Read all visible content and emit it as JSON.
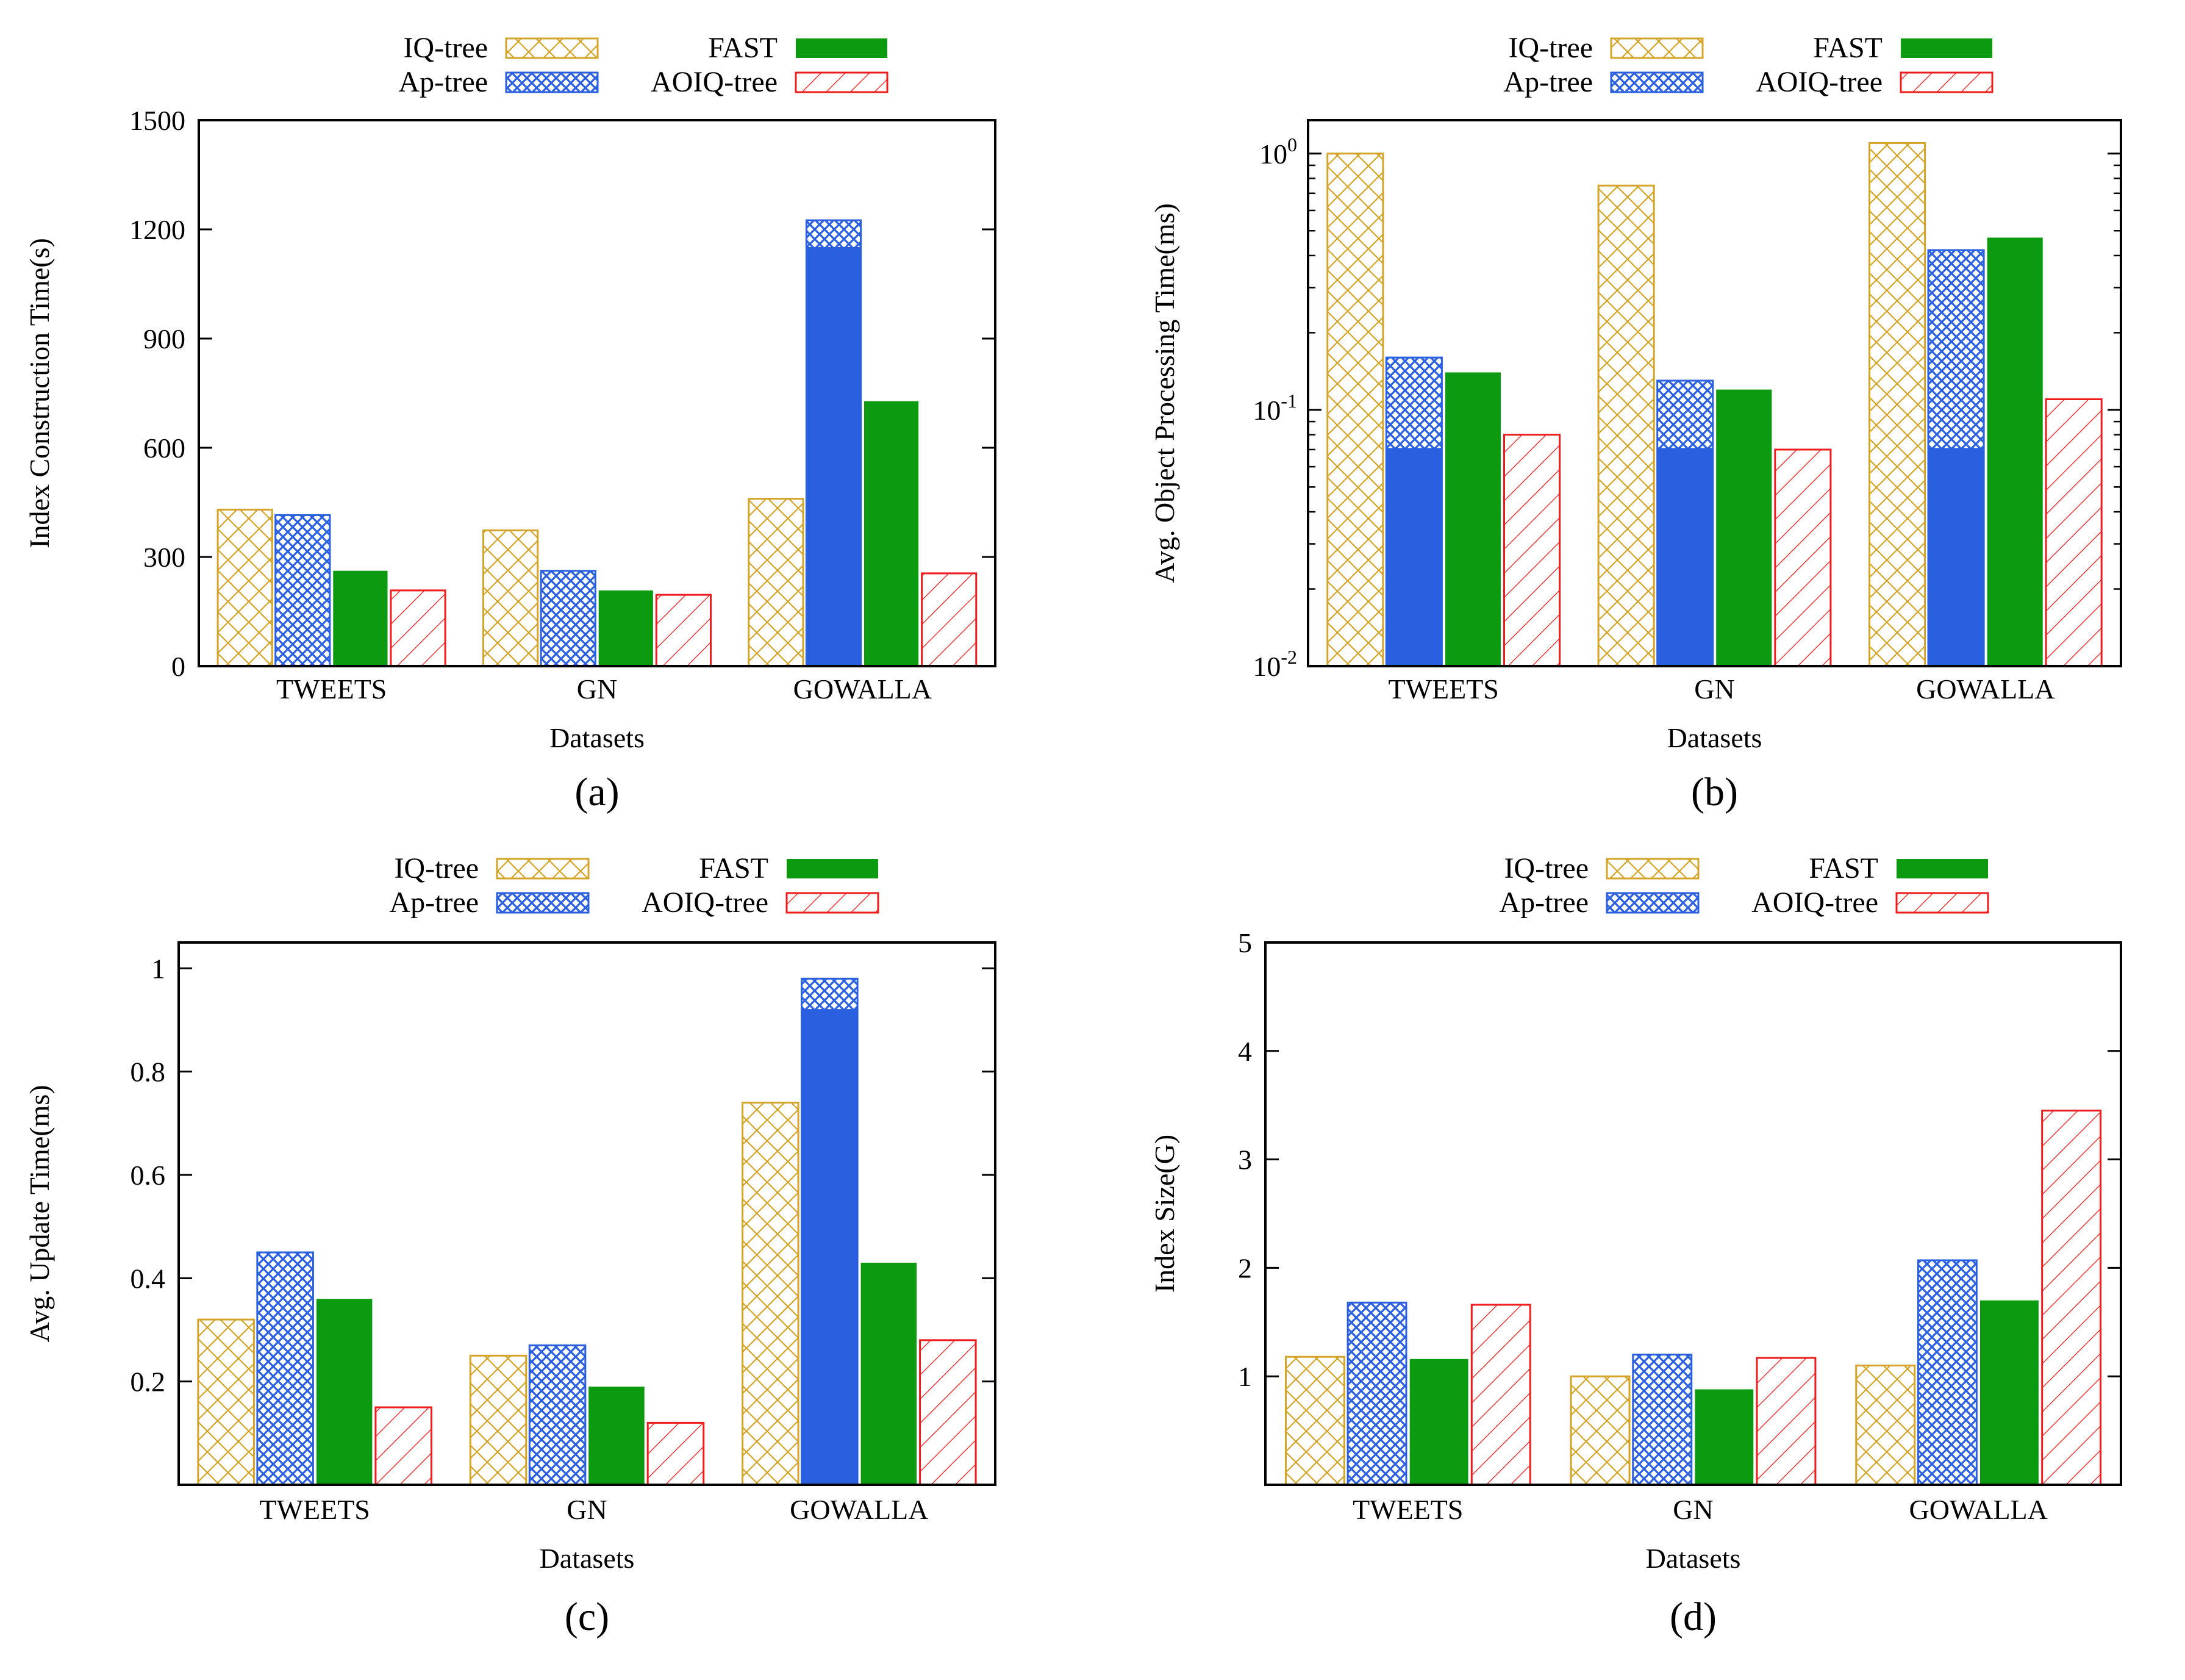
{
  "colors": {
    "iq_tree": "#d4a429",
    "ap_tree": "#2a60e0",
    "fast": "#0c9a10",
    "aoiq_tree": "#ee1c1c"
  },
  "series_styles": [
    {
      "name": "IQ-tree",
      "pattern": "crosshatch-outline",
      "color": "#d4a429"
    },
    {
      "name": "Ap-tree",
      "pattern": "fine-crosshatch",
      "color": "#2a60e0"
    },
    {
      "name": "FAST",
      "pattern": "solid",
      "color": "#0c9a10"
    },
    {
      "name": "AOIQ-tree",
      "pattern": "diagonal-hatch-outline",
      "color": "#ee1c1c"
    }
  ],
  "chart_data": [
    {
      "id": "a",
      "panel_label": "(a)",
      "type": "bar",
      "title": "",
      "xlabel": "Datasets",
      "ylabel": "Index Construction Time(s)",
      "yscale": "linear",
      "ylim": [
        0,
        1500
      ],
      "yticks": [
        0,
        300,
        600,
        900,
        1200,
        1500
      ],
      "ytick_labels": [
        "0",
        "300",
        "600",
        "900",
        "1200",
        "1500"
      ],
      "categories": [
        "TWEETS",
        "GN",
        "GOWALLA"
      ],
      "series": [
        {
          "name": "IQ-tree",
          "values": [
            430,
            373,
            460
          ]
        },
        {
          "name": "Ap-tree",
          "values": [
            415,
            262,
            1225
          ]
        },
        {
          "name": "FAST",
          "values": [
            262,
            208,
            728
          ]
        },
        {
          "name": "AOIQ-tree",
          "values": [
            208,
            196,
            255
          ]
        }
      ],
      "legend": {
        "position": "top",
        "columns": 2
      }
    },
    {
      "id": "b",
      "panel_label": "(b)",
      "type": "bar",
      "title": "",
      "xlabel": "Datasets",
      "ylabel": "Avg. Object Processing Time(ms)",
      "yscale": "log",
      "ylim": [
        0.01,
        1.35
      ],
      "yticks": [
        0.01,
        0.1,
        1
      ],
      "ytick_labels": [
        {
          "base": "10",
          "exp": "-2"
        },
        {
          "base": "10",
          "exp": "-1"
        },
        {
          "base": "10",
          "exp": "0"
        }
      ],
      "categories": [
        "TWEETS",
        "GN",
        "GOWALLA"
      ],
      "series": [
        {
          "name": "IQ-tree",
          "values": [
            1.0,
            0.75,
            1.1
          ]
        },
        {
          "name": "Ap-tree",
          "values": [
            0.16,
            0.13,
            0.42
          ]
        },
        {
          "name": "FAST",
          "values": [
            0.14,
            0.12,
            0.47
          ]
        },
        {
          "name": "AOIQ-tree",
          "values": [
            0.08,
            0.07,
            0.11
          ]
        }
      ],
      "legend": {
        "position": "top",
        "columns": 2
      }
    },
    {
      "id": "c",
      "panel_label": "(c)",
      "type": "bar",
      "title": "",
      "xlabel": "Datasets",
      "ylabel": "Avg. Update Time(ms)",
      "yscale": "linear",
      "ylim": [
        0,
        1.05
      ],
      "yticks": [
        0.2,
        0.4,
        0.6,
        0.8,
        1
      ],
      "ytick_labels": [
        "0.2",
        "0.4",
        "0.6",
        "0.8",
        "1"
      ],
      "categories": [
        "TWEETS",
        "GN",
        "GOWALLA"
      ],
      "series": [
        {
          "name": "IQ-tree",
          "values": [
            0.32,
            0.25,
            0.74
          ]
        },
        {
          "name": "Ap-tree",
          "values": [
            0.45,
            0.27,
            0.98
          ]
        },
        {
          "name": "FAST",
          "values": [
            0.36,
            0.19,
            0.43
          ]
        },
        {
          "name": "AOIQ-tree",
          "values": [
            0.15,
            0.12,
            0.28
          ]
        }
      ],
      "legend": {
        "position": "top",
        "columns": 2
      }
    },
    {
      "id": "d",
      "panel_label": "(d)",
      "type": "bar",
      "title": "",
      "xlabel": "Datasets",
      "ylabel": "Index Size(G)",
      "yscale": "linear",
      "ylim": [
        0,
        5
      ],
      "yticks": [
        1,
        2,
        3,
        4,
        5
      ],
      "ytick_labels": [
        "1",
        "2",
        "3",
        "4",
        "5"
      ],
      "categories": [
        "TWEETS",
        "GN",
        "GOWALLA"
      ],
      "series": [
        {
          "name": "IQ-tree",
          "values": [
            1.18,
            1.0,
            1.1
          ]
        },
        {
          "name": "Ap-tree",
          "values": [
            1.68,
            1.2,
            2.07
          ]
        },
        {
          "name": "FAST",
          "values": [
            1.16,
            0.88,
            1.7
          ]
        },
        {
          "name": "AOIQ-tree",
          "values": [
            1.66,
            1.17,
            3.45
          ]
        }
      ],
      "legend": {
        "position": "top",
        "columns": 2
      }
    }
  ]
}
